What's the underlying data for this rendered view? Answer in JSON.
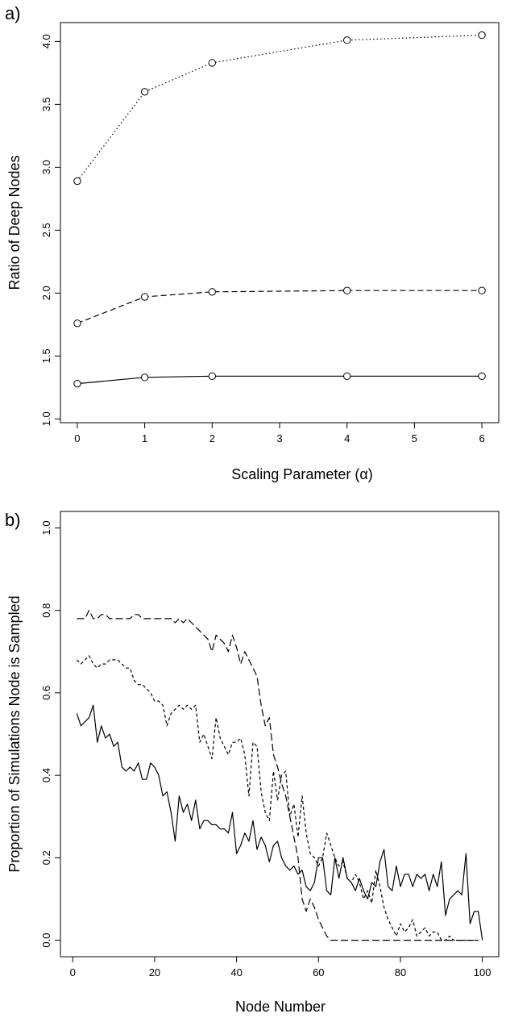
{
  "chart_data": [
    {
      "panel_label": "a)",
      "type": "line",
      "xlabel": "Scaling Parameter (α)",
      "ylabel": "Ratio of Deep Nodes",
      "xlim": [
        -0.25,
        6.25
      ],
      "ylim": [
        0.97,
        4.15
      ],
      "xticks": [
        0,
        1,
        2,
        3,
        4,
        5,
        6
      ],
      "yticks": [
        1.0,
        1.5,
        2.0,
        2.5,
        3.0,
        3.5,
        4.0
      ],
      "ytick_labels": [
        "1.0",
        "1.5",
        "2.0",
        "2.5",
        "3.0",
        "3.5",
        "4.0"
      ],
      "grid": false,
      "x": [
        0,
        1,
        2,
        4,
        6
      ],
      "series": [
        {
          "line_style": "dotted",
          "marker": "open-circle",
          "values": [
            2.89,
            3.6,
            3.83,
            4.01,
            4.05
          ]
        },
        {
          "line_style": "dashed",
          "marker": "open-circle",
          "values": [
            1.76,
            1.97,
            2.01,
            2.02,
            2.02
          ]
        },
        {
          "line_style": "solid",
          "marker": "open-circle",
          "values": [
            1.28,
            1.33,
            1.34,
            1.34,
            1.34
          ]
        }
      ]
    },
    {
      "panel_label": "b)",
      "type": "line",
      "xlabel": "Node Number",
      "ylabel": "Proportion of Simulations Node is Sampled",
      "xlim": [
        -3,
        104
      ],
      "ylim": [
        -0.04,
        1.04
      ],
      "xticks": [
        0,
        20,
        40,
        60,
        80,
        100
      ],
      "yticks": [
        0.0,
        0.2,
        0.4,
        0.6,
        0.8,
        1.0
      ],
      "ytick_labels": [
        "0.0",
        "0.2",
        "0.4",
        "0.6",
        "0.8",
        "1.0"
      ],
      "grid": false,
      "series": [
        {
          "line_style": "longdash",
          "values": [
            0.78,
            0.78,
            0.78,
            0.8,
            0.78,
            0.78,
            0.79,
            0.79,
            0.78,
            0.78,
            0.78,
            0.78,
            0.78,
            0.78,
            0.79,
            0.79,
            0.78,
            0.78,
            0.78,
            0.78,
            0.78,
            0.78,
            0.78,
            0.78,
            0.77,
            0.78,
            0.77,
            0.78,
            0.77,
            0.76,
            0.75,
            0.74,
            0.73,
            0.7,
            0.74,
            0.73,
            0.72,
            0.7,
            0.74,
            0.71,
            0.67,
            0.7,
            0.68,
            0.66,
            0.64,
            0.57,
            0.52,
            0.54,
            0.45,
            0.42,
            0.38,
            0.35,
            0.3,
            0.25,
            0.2,
            0.1,
            0.07,
            0.1,
            0.08,
            0.05,
            0.03,
            0.01,
            0,
            0,
            0,
            0,
            0,
            0,
            0,
            0,
            0,
            0,
            0,
            0,
            0,
            0,
            0,
            0,
            0,
            0,
            0,
            0,
            0,
            0,
            0,
            0,
            0,
            0,
            0,
            0,
            0,
            0,
            0,
            0,
            0,
            0,
            0,
            0,
            0
          ]
        },
        {
          "line_style": "shortdash",
          "values": [
            0.68,
            0.67,
            0.68,
            0.69,
            0.67,
            0.66,
            0.67,
            0.67,
            0.68,
            0.68,
            0.68,
            0.67,
            0.66,
            0.66,
            0.63,
            0.62,
            0.62,
            0.61,
            0.6,
            0.58,
            0.58,
            0.57,
            0.52,
            0.55,
            0.56,
            0.57,
            0.56,
            0.57,
            0.56,
            0.57,
            0.48,
            0.5,
            0.47,
            0.44,
            0.54,
            0.49,
            0.47,
            0.45,
            0.48,
            0.48,
            0.49,
            0.45,
            0.35,
            0.48,
            0.47,
            0.36,
            0.31,
            0.29,
            0.41,
            0.34,
            0.4,
            0.41,
            0.3,
            0.33,
            0.25,
            0.35,
            0.26,
            0.21,
            0.2,
            0.18,
            0.2,
            0.26,
            0.23,
            0.2,
            0.18,
            0.19,
            0.15,
            0.14,
            0.16,
            0.14,
            0.1,
            0.12,
            0.09,
            0.17,
            0.13,
            0.08,
            0.05,
            0.03,
            0.01,
            0.04,
            0.02,
            0.03,
            0.05,
            0.01,
            0.02,
            0.03,
            0.01,
            0.02,
            0.02,
            0,
            0,
            0.01,
            0,
            0,
            0,
            0,
            0,
            0,
            0
          ]
        },
        {
          "line_style": "solid",
          "values": [
            0.55,
            0.52,
            0.53,
            0.54,
            0.57,
            0.48,
            0.52,
            0.49,
            0.5,
            0.47,
            0.48,
            0.42,
            0.41,
            0.42,
            0.41,
            0.43,
            0.39,
            0.39,
            0.43,
            0.42,
            0.4,
            0.35,
            0.36,
            0.31,
            0.24,
            0.35,
            0.31,
            0.33,
            0.29,
            0.34,
            0.27,
            0.29,
            0.29,
            0.28,
            0.28,
            0.27,
            0.27,
            0.26,
            0.31,
            0.21,
            0.23,
            0.26,
            0.24,
            0.29,
            0.22,
            0.25,
            0.23,
            0.19,
            0.23,
            0.24,
            0.2,
            0.18,
            0.17,
            0.18,
            0.16,
            0.17,
            0.13,
            0.12,
            0.14,
            0.2,
            0.2,
            0.12,
            0.11,
            0.2,
            0.15,
            0.2,
            0.15,
            0.14,
            0.12,
            0.15,
            0.12,
            0.1,
            0.14,
            0.13,
            0.19,
            0.22,
            0.13,
            0.12,
            0.18,
            0.13,
            0.16,
            0.16,
            0.13,
            0.16,
            0.15,
            0.16,
            0.12,
            0.16,
            0.13,
            0.19,
            0.06,
            0.1,
            0.11,
            0.12,
            0.11,
            0.21,
            0.04,
            0.07,
            0.07,
            0
          ]
        }
      ]
    }
  ]
}
